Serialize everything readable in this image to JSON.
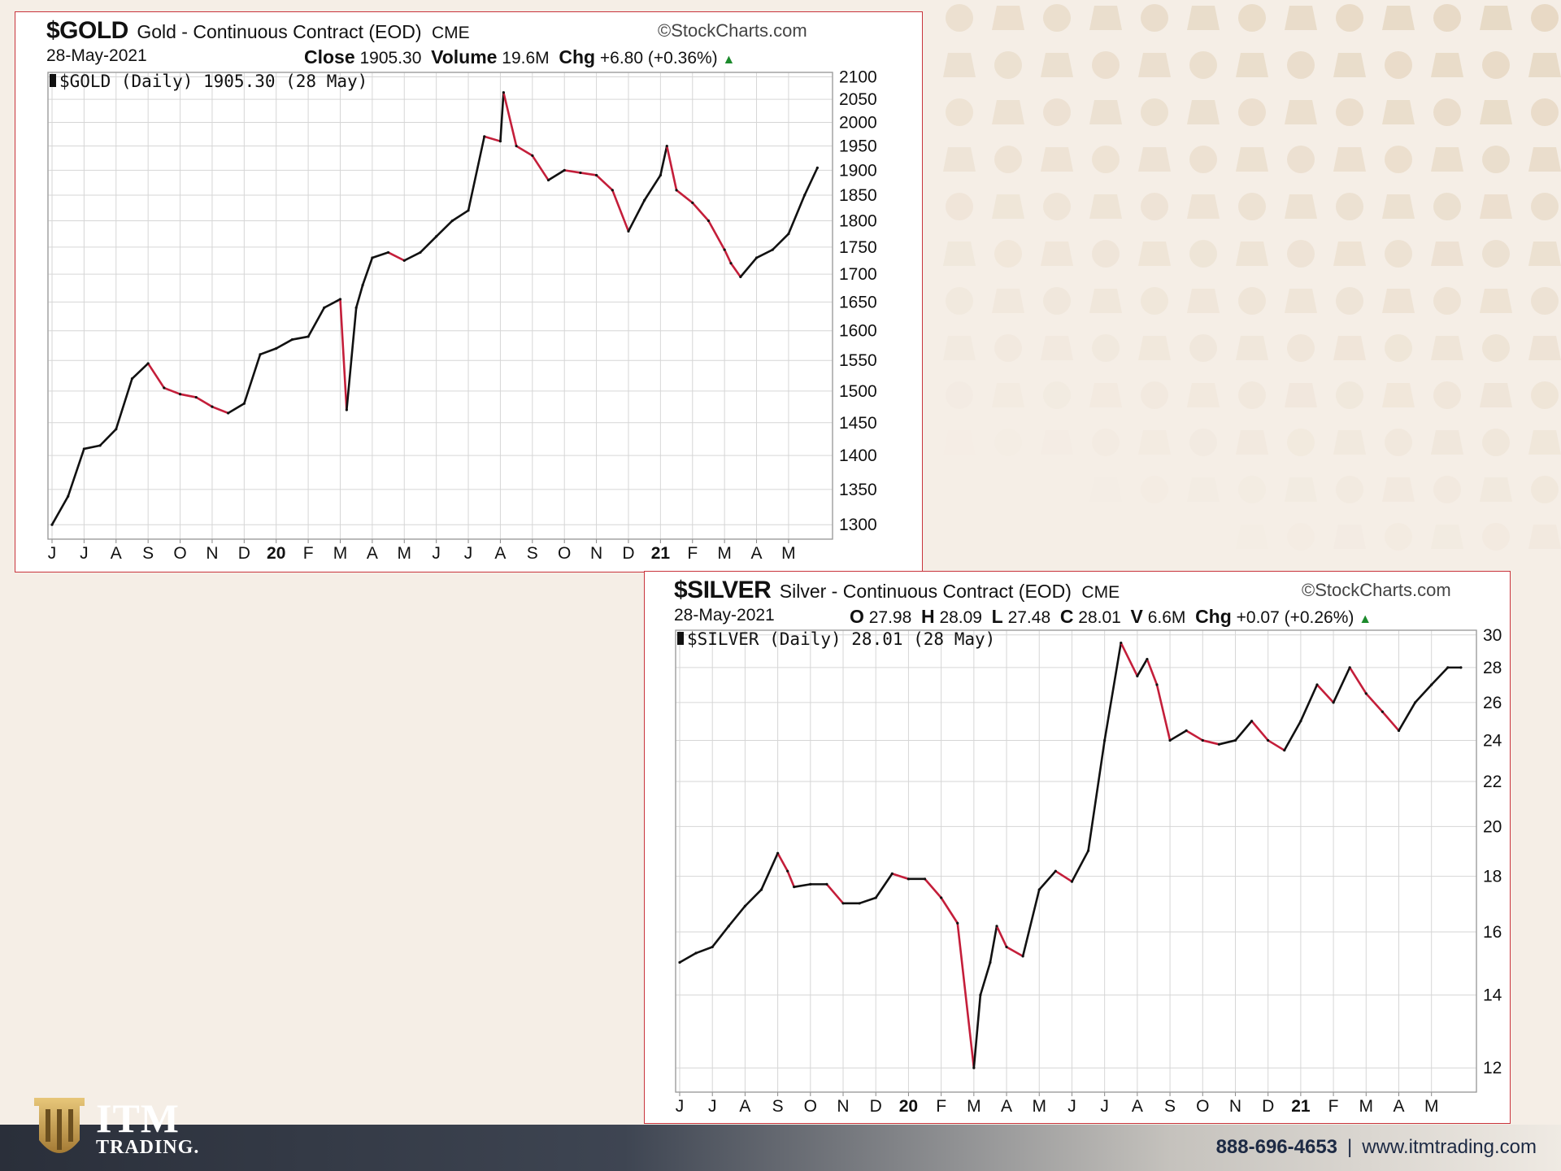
{
  "gold": {
    "symbol": "$GOLD",
    "description": "Gold - Continuous Contract (EOD)",
    "exchange": "CME",
    "source": "StockCharts.com",
    "date": "28-May-2021",
    "close_label": "Close",
    "close_value": "1905.30",
    "volume_label": "Volume",
    "volume_value": "19.6M",
    "chg_label": "Chg",
    "chg_value": "+6.80 (+0.36%)",
    "inner_label": "$GOLD (Daily) 1905.30 (28 May)"
  },
  "silver": {
    "symbol": "$SILVER",
    "description": "Silver - Continuous Contract (EOD)",
    "exchange": "CME",
    "source": "StockCharts.com",
    "date": "28-May-2021",
    "open_label": "O",
    "open_value": "27.98",
    "high_label": "H",
    "high_value": "28.09",
    "low_label": "L",
    "low_value": "27.48",
    "close_label": "C",
    "close_value": "28.01",
    "volume_label": "V",
    "volume_value": "6.6M",
    "chg_label": "Chg",
    "chg_value": "+0.07 (+0.26%)",
    "inner_label": "$SILVER (Daily) 28.01 (28 May)"
  },
  "chart_data": [
    {
      "type": "line",
      "scale": "log",
      "x_ticks": [
        "J",
        "J",
        "A",
        "S",
        "O",
        "N",
        "D",
        "20",
        "F",
        "M",
        "A",
        "M",
        "J",
        "J",
        "A",
        "S",
        "O",
        "N",
        "D",
        "21",
        "F",
        "M",
        "A",
        "M"
      ],
      "x_bold_ticks": [
        "20",
        "21"
      ],
      "y_ticks": [
        1300,
        1350,
        1400,
        1450,
        1500,
        1550,
        1600,
        1650,
        1700,
        1750,
        1800,
        1850,
        1900,
        1950,
        2000,
        2050,
        2100
      ],
      "ylim": [
        1280,
        2110
      ],
      "x": [
        0,
        0.5,
        1,
        1.5,
        2,
        2.5,
        3,
        3.5,
        4,
        4.5,
        5,
        5.5,
        6,
        6.5,
        7,
        7.5,
        8,
        8.5,
        9,
        9.2,
        9.5,
        9.7,
        10,
        10.5,
        11,
        11.5,
        12,
        12.5,
        13,
        13.5,
        14,
        14.1,
        14.5,
        15,
        15.5,
        16,
        16.5,
        17,
        17.5,
        18,
        18.5,
        19,
        19.2,
        19.5,
        20,
        20.5,
        21,
        21.2,
        21.5,
        22,
        22.5,
        23,
        23.5,
        23.9
      ],
      "y": [
        1300,
        1340,
        1410,
        1415,
        1440,
        1520,
        1545,
        1505,
        1495,
        1490,
        1475,
        1465,
        1480,
        1560,
        1570,
        1585,
        1590,
        1640,
        1655,
        1470,
        1640,
        1680,
        1730,
        1740,
        1725,
        1740,
        1770,
        1800,
        1820,
        1970,
        1960,
        2065,
        1950,
        1930,
        1880,
        1900,
        1895,
        1890,
        1860,
        1780,
        1840,
        1890,
        1950,
        1860,
        1835,
        1800,
        1745,
        1720,
        1695,
        1730,
        1745,
        1775,
        1850,
        1905
      ],
      "series": [
        {
          "name": "$GOLD",
          "color": "#111111"
        }
      ],
      "down_color": "#c41e3a",
      "grid": true
    },
    {
      "type": "line",
      "scale": "log",
      "x_ticks": [
        "J",
        "J",
        "A",
        "S",
        "O",
        "N",
        "D",
        "20",
        "F",
        "M",
        "A",
        "M",
        "J",
        "J",
        "A",
        "S",
        "O",
        "N",
        "D",
        "21",
        "F",
        "M",
        "A",
        "M"
      ],
      "x_bold_ticks": [
        "20",
        "21"
      ],
      "y_ticks": [
        12,
        14,
        16,
        18,
        20,
        22,
        24,
        26,
        28,
        30
      ],
      "ylim": [
        11.4,
        30.3
      ],
      "x": [
        0,
        0.5,
        1,
        1.5,
        2,
        2.5,
        3,
        3.3,
        3.5,
        4,
        4.5,
        5,
        5.5,
        6,
        6.5,
        7,
        7.5,
        8,
        8.5,
        9,
        9.2,
        9.5,
        9.7,
        10,
        10.5,
        11,
        11.5,
        12,
        12.5,
        13,
        13.5,
        14,
        14.3,
        14.6,
        15,
        15.5,
        16,
        16.5,
        17,
        17.5,
        18,
        18.5,
        19,
        19.5,
        20,
        20.5,
        21,
        21.5,
        22,
        22.5,
        23,
        23.5,
        23.9
      ],
      "y": [
        15.0,
        15.3,
        15.5,
        16.2,
        16.9,
        17.5,
        18.9,
        18.2,
        17.6,
        17.7,
        17.7,
        17.0,
        17.0,
        17.2,
        18.1,
        17.9,
        17.9,
        17.2,
        16.3,
        12.0,
        14.0,
        15.0,
        16.2,
        15.5,
        15.2,
        17.5,
        18.2,
        17.8,
        19.0,
        24.0,
        29.5,
        27.5,
        28.5,
        27.0,
        24.0,
        24.5,
        24.0,
        23.8,
        24.0,
        25.0,
        24.0,
        23.5,
        25.0,
        27.0,
        26.0,
        28.0,
        26.5,
        25.5,
        24.5,
        26.0,
        27.0,
        28.0,
        28.0
      ],
      "series": [
        {
          "name": "$SILVER",
          "color": "#111111"
        }
      ],
      "down_color": "#c41e3a",
      "grid": true
    }
  ],
  "footer": {
    "brand_line1": "ITM",
    "brand_line2": "TRADING.",
    "phone": "888-696-4653",
    "separator": "|",
    "website": "www.itmtrading.com"
  },
  "colors": {
    "panel_border": "#c8343c",
    "up": "#1c8a2c",
    "down": "#c41e3a",
    "background": "#f5eee6"
  }
}
